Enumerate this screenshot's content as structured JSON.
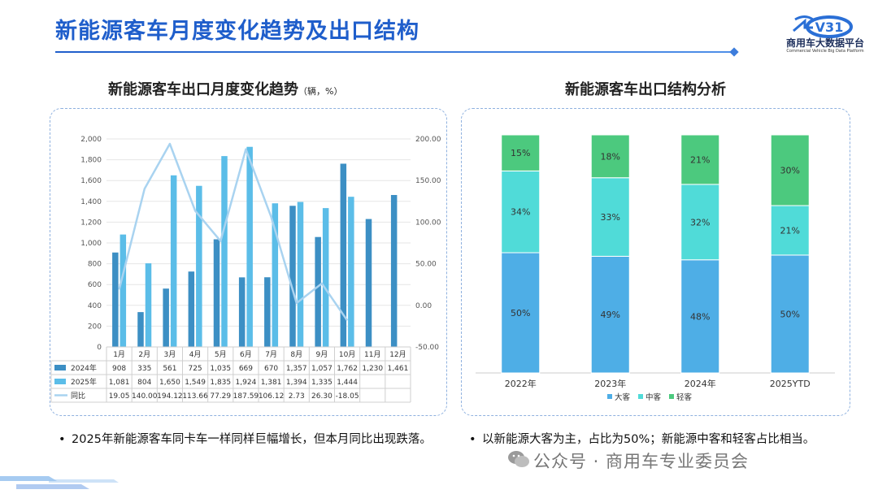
{
  "header": {
    "title": "新能源客车月度变化趋势及出口结构",
    "logo_name": "商用车大数据平台",
    "logo_sub": "Commercial Vehicle Big Data Platform",
    "logo_mark": "V31"
  },
  "left_panel": {
    "title": "新能源客车出口月度变化趋势",
    "unit": "（辆，%）",
    "bullet": "2025年新能源客车同卡车一样同样巨幅增长，但本月同比出现跌落。"
  },
  "right_panel": {
    "title": "新能源客车出口结构分析",
    "bullet": "以新能源大客为主，占比为50%；新能源中客和轻客占比相当。"
  },
  "footer": {
    "wechat": "公众号 · 商用车专业委员会"
  },
  "colors": {
    "s2024": "#3c8fc4",
    "s2025": "#5bbde8",
    "yoy": "#a9d3f0",
    "large": "#4eaee6",
    "mid": "#50dbd8",
    "light": "#4cc97e",
    "accent": "#1f5ecb"
  },
  "chart_data": [
    {
      "type": "bar+line",
      "title": "新能源客车出口月度变化趋势",
      "categories": [
        "1月",
        "2月",
        "3月",
        "4月",
        "5月",
        "6月",
        "7月",
        "8月",
        "9月",
        "10月",
        "11月",
        "12月"
      ],
      "series": [
        {
          "name": "2024年",
          "kind": "bar",
          "values": [
            908,
            335,
            561,
            725,
            1035,
            669,
            670,
            1357,
            1057,
            1762,
            1230,
            1461
          ],
          "labels": [
            "908",
            "335",
            "561",
            "725",
            "1,035",
            "669",
            "670",
            "1,357",
            "1,057",
            "1,762",
            "1,230",
            "1,461"
          ]
        },
        {
          "name": "2025年",
          "kind": "bar",
          "values": [
            1081,
            804,
            1650,
            1549,
            1835,
            1924,
            1381,
            1394,
            1335,
            1444,
            null,
            null
          ],
          "labels": [
            "1,081",
            "804",
            "1,650",
            "1,549",
            "1,835",
            "1,924",
            "1,381",
            "1,394",
            "1,335",
            "1,444",
            "",
            ""
          ]
        },
        {
          "name": "同比",
          "kind": "line",
          "axis": "right",
          "values": [
            19.05,
            140.0,
            194.12,
            113.66,
            77.29,
            187.59,
            106.12,
            2.73,
            26.3,
            -18.05,
            null,
            null
          ],
          "labels": [
            "19.05",
            "140.00",
            "194.12",
            "113.66",
            "77.29",
            "187.59",
            "106.12",
            "2.73",
            "26.30",
            "-18.05",
            "",
            ""
          ]
        }
      ],
      "left_axis": {
        "min": 0,
        "max": 2000,
        "step": 200,
        "ticks": [
          "0",
          "200",
          "400",
          "600",
          "800",
          "1,000",
          "1,200",
          "1,400",
          "1,600",
          "1,800",
          "2,000"
        ]
      },
      "right_axis": {
        "min": -50,
        "max": 200,
        "step": 50,
        "ticks": [
          "-50.00",
          "0.00",
          "50.00",
          "100.00",
          "150.00",
          "200.00"
        ]
      },
      "legend": "data-table-bottom"
    },
    {
      "type": "stacked-bar",
      "title": "新能源客车出口结构分析",
      "categories": [
        "2022年",
        "2023年",
        "2024年",
        "2025YTD"
      ],
      "series": [
        {
          "name": "大客",
          "values": [
            50,
            49,
            48,
            50
          ]
        },
        {
          "name": "中客",
          "values": [
            34,
            33,
            32,
            21
          ]
        },
        {
          "name": "轻客",
          "values": [
            15,
            18,
            21,
            30
          ]
        }
      ],
      "value_suffix": "%",
      "ylim": [
        0,
        100
      ],
      "legend": "bottom-center"
    }
  ]
}
